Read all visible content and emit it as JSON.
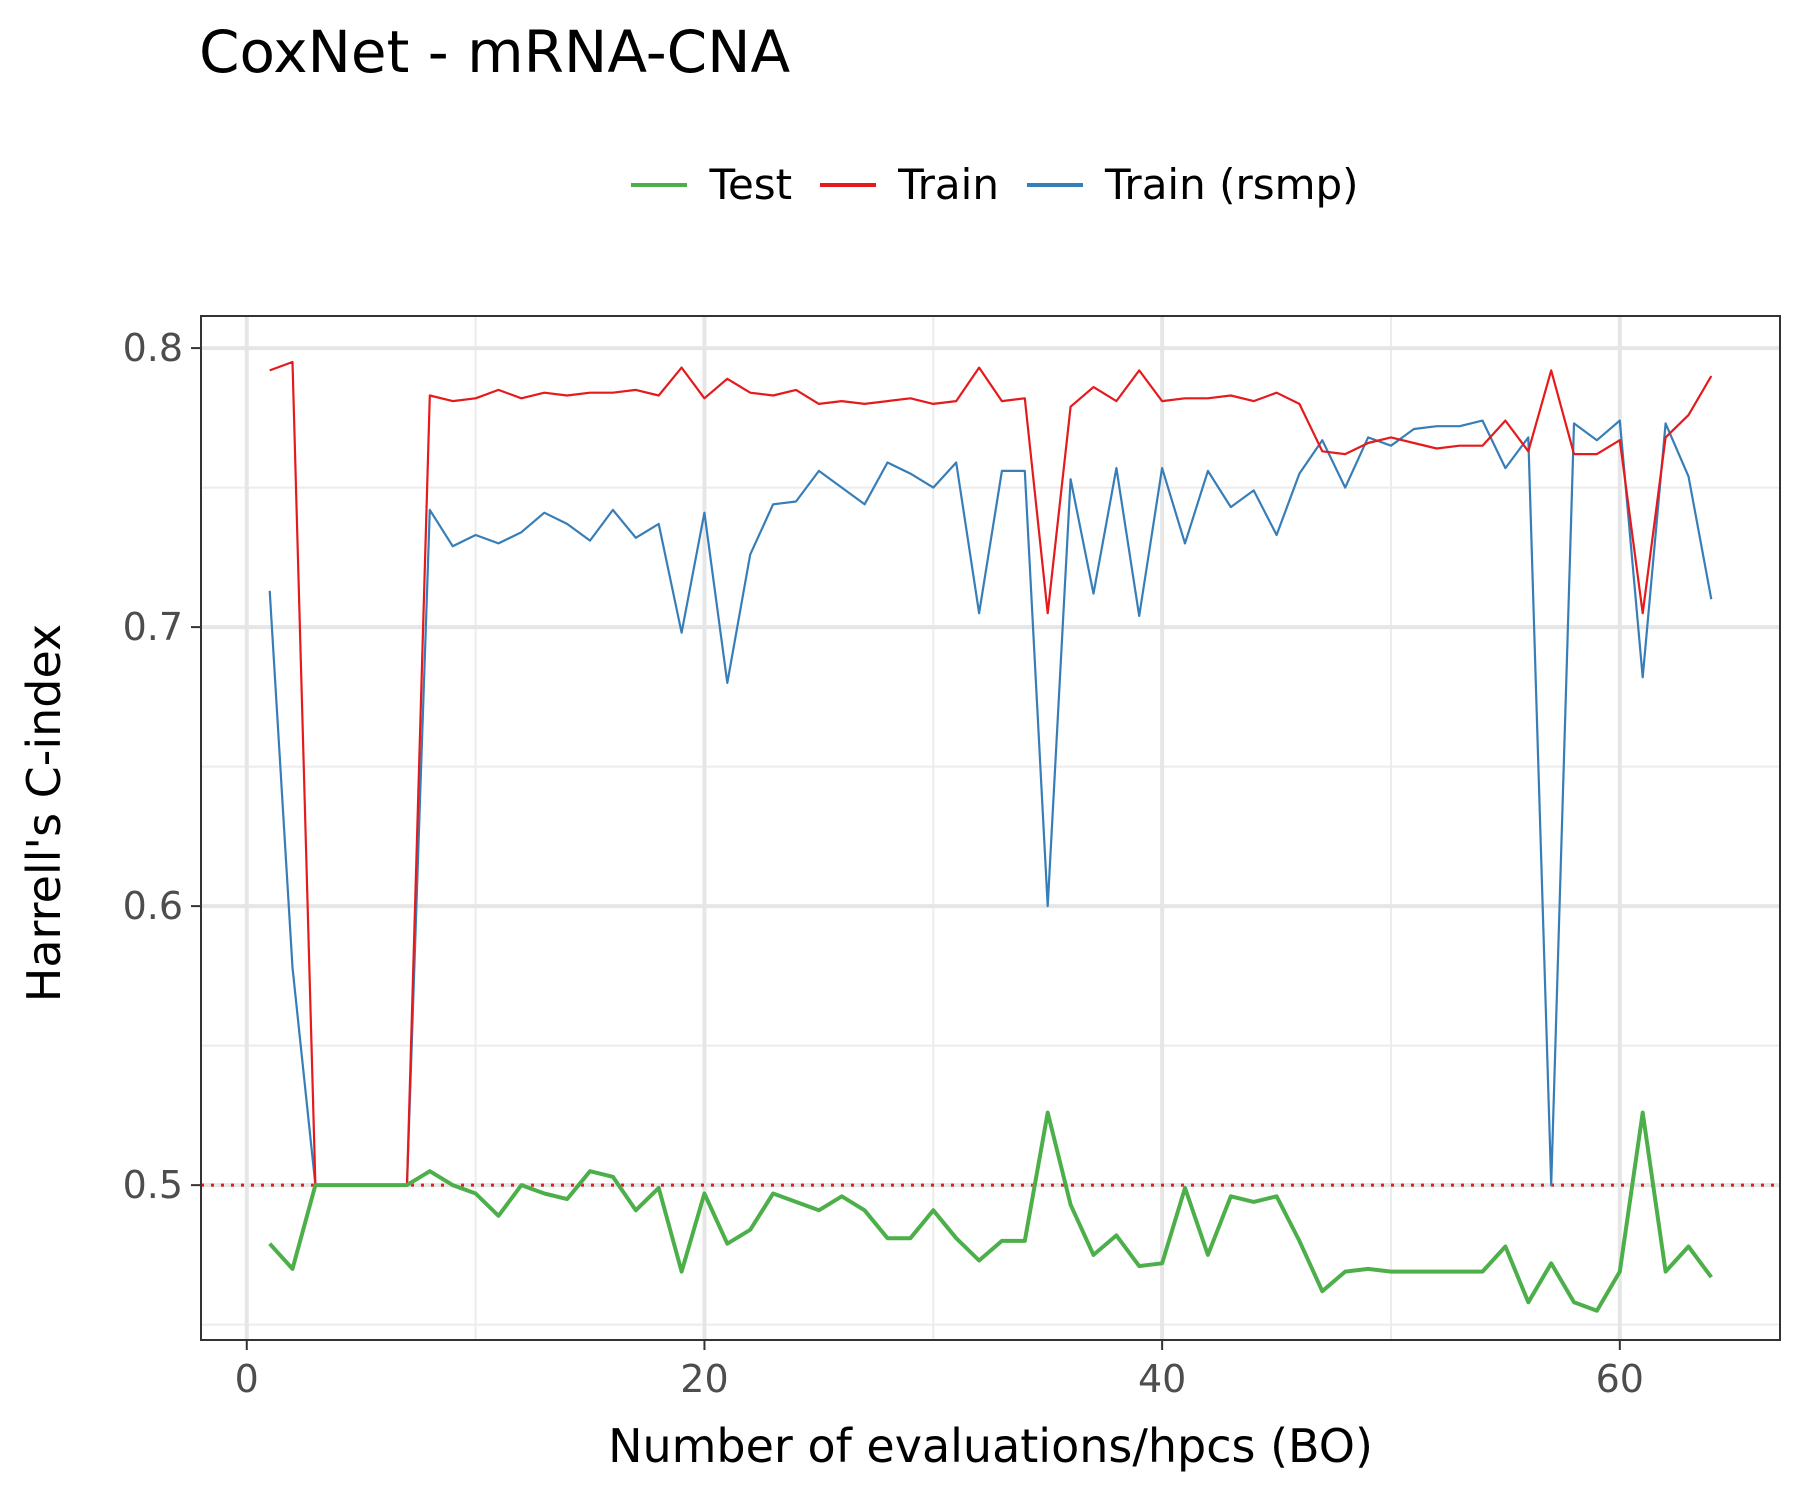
{
  "chart_data": {
    "type": "line",
    "title": "CoxNet - mRNA-CNA",
    "xlabel": "Number of evaluations/hpcs (BO)",
    "ylabel": "Harrell's C-index",
    "xlim": [
      -2,
      67
    ],
    "ylim": [
      0.4445,
      0.8115
    ],
    "x_ticks": [
      0,
      20,
      40,
      60
    ],
    "x_tick_labels": [
      "0",
      "20",
      "40",
      "60"
    ],
    "y_ticks": [
      0.5,
      0.6,
      0.7,
      0.8
    ],
    "y_tick_labels": [
      "0.5",
      "0.6",
      "0.7",
      "0.8"
    ],
    "grid": true,
    "legend_position": "top",
    "reference_line": {
      "y": 0.5,
      "style": "dotted",
      "color": "#e41a1c"
    },
    "x": [
      1,
      2,
      3,
      4,
      5,
      6,
      7,
      8,
      9,
      10,
      11,
      12,
      13,
      14,
      15,
      16,
      17,
      18,
      19,
      20,
      21,
      22,
      23,
      24,
      25,
      26,
      27,
      28,
      29,
      30,
      31,
      32,
      33,
      34,
      35,
      36,
      37,
      38,
      39,
      40,
      41,
      42,
      43,
      44,
      45,
      46,
      47,
      48,
      49,
      50,
      51,
      52,
      53,
      54,
      55,
      56,
      57,
      58,
      59,
      60,
      61,
      62,
      63,
      64
    ],
    "series": [
      {
        "name": "Test",
        "color": "#4daf4a",
        "values": [
          0.479,
          0.47,
          0.5,
          0.5,
          0.5,
          0.5,
          0.5,
          0.505,
          0.5,
          0.497,
          0.489,
          0.5,
          0.497,
          0.495,
          0.505,
          0.503,
          0.491,
          0.499,
          0.469,
          0.497,
          0.479,
          0.484,
          0.497,
          0.494,
          0.491,
          0.496,
          0.491,
          0.481,
          0.481,
          0.491,
          0.481,
          0.473,
          0.48,
          0.48,
          0.526,
          0.493,
          0.475,
          0.482,
          0.471,
          0.472,
          0.499,
          0.475,
          0.496,
          0.494,
          0.496,
          0.48,
          0.462,
          0.469,
          0.47,
          0.469,
          0.469,
          0.469,
          0.469,
          0.469,
          0.478,
          0.458,
          0.472,
          0.458,
          0.455,
          0.469,
          0.526,
          0.469,
          0.478,
          0.467
        ]
      },
      {
        "name": "Train",
        "color": "#e41a1c",
        "values": [
          0.792,
          0.795,
          0.5,
          0.5,
          0.5,
          0.5,
          0.5,
          0.783,
          0.781,
          0.782,
          0.785,
          0.782,
          0.784,
          0.783,
          0.784,
          0.784,
          0.785,
          0.783,
          0.793,
          0.782,
          0.789,
          0.784,
          0.783,
          0.785,
          0.78,
          0.781,
          0.78,
          0.781,
          0.782,
          0.78,
          0.781,
          0.793,
          0.781,
          0.782,
          0.705,
          0.779,
          0.786,
          0.781,
          0.792,
          0.781,
          0.782,
          0.782,
          0.783,
          0.781,
          0.784,
          0.78,
          0.763,
          0.762,
          0.766,
          0.768,
          0.766,
          0.764,
          0.765,
          0.765,
          0.774,
          0.763,
          0.792,
          0.762,
          0.762,
          0.767,
          0.705,
          0.768,
          0.776,
          0.79
        ]
      },
      {
        "name": "Train (rsmp)",
        "color": "#377eb8",
        "values": [
          0.713,
          0.578,
          0.5,
          0.5,
          0.5,
          0.5,
          0.5,
          0.742,
          0.729,
          0.733,
          0.73,
          0.734,
          0.741,
          0.737,
          0.731,
          0.742,
          0.732,
          0.737,
          0.698,
          0.741,
          0.68,
          0.726,
          0.744,
          0.745,
          0.756,
          0.75,
          0.744,
          0.759,
          0.755,
          0.75,
          0.759,
          0.705,
          0.756,
          0.756,
          0.6,
          0.753,
          0.712,
          0.757,
          0.704,
          0.757,
          0.73,
          0.756,
          0.743,
          0.749,
          0.733,
          0.755,
          0.767,
          0.75,
          0.768,
          0.765,
          0.771,
          0.772,
          0.772,
          0.774,
          0.757,
          0.768,
          0.5,
          0.773,
          0.767,
          0.774,
          0.682,
          0.773,
          0.754,
          0.71
        ]
      }
    ]
  }
}
